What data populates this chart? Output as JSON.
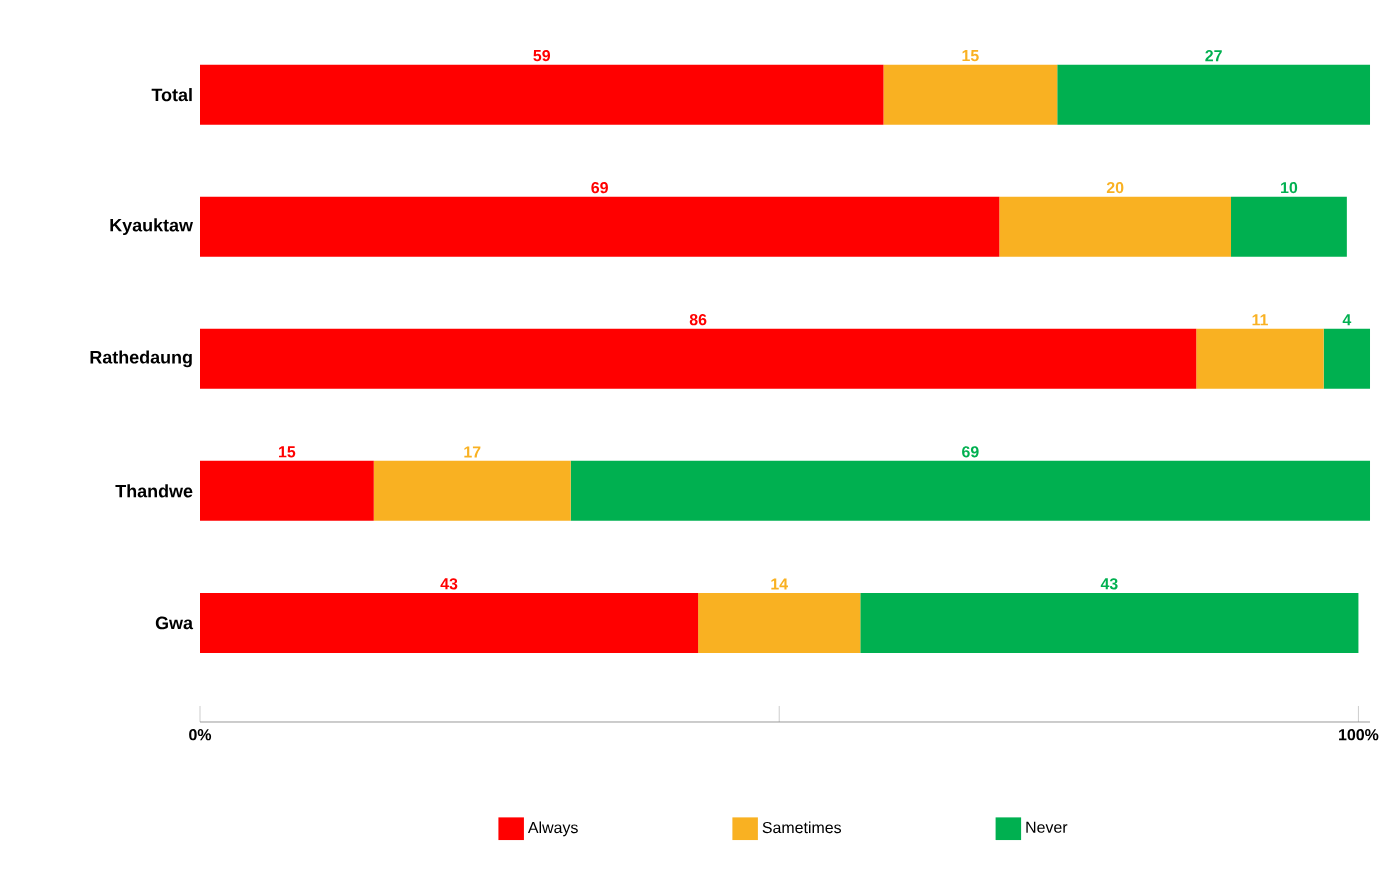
{
  "chart_data": {
    "type": "bar",
    "orientation": "horizontal",
    "stacked": true,
    "data_labels": true,
    "legend": "bottom",
    "grid": false,
    "categories": [
      "Total",
      "Kyauktaw",
      "Rathedaung",
      "Thandwe",
      "Gwa"
    ],
    "series": [
      {
        "name": "Always",
        "color": "#ff0000",
        "values": [
          59,
          69,
          86,
          15,
          43
        ]
      },
      {
        "name": "Sametimes",
        "color": "#f9b122",
        "values": [
          15,
          20,
          11,
          17,
          14
        ]
      },
      {
        "name": "Never",
        "color": "#00b050",
        "values": [
          27,
          10,
          4,
          69,
          43
        ]
      }
    ],
    "xlim": [
      0,
      101
    ],
    "xticks": [
      {
        "value": 0,
        "label": "0%"
      },
      {
        "value": 50,
        "label": null
      },
      {
        "value": 100,
        "label": "100%"
      }
    ]
  }
}
